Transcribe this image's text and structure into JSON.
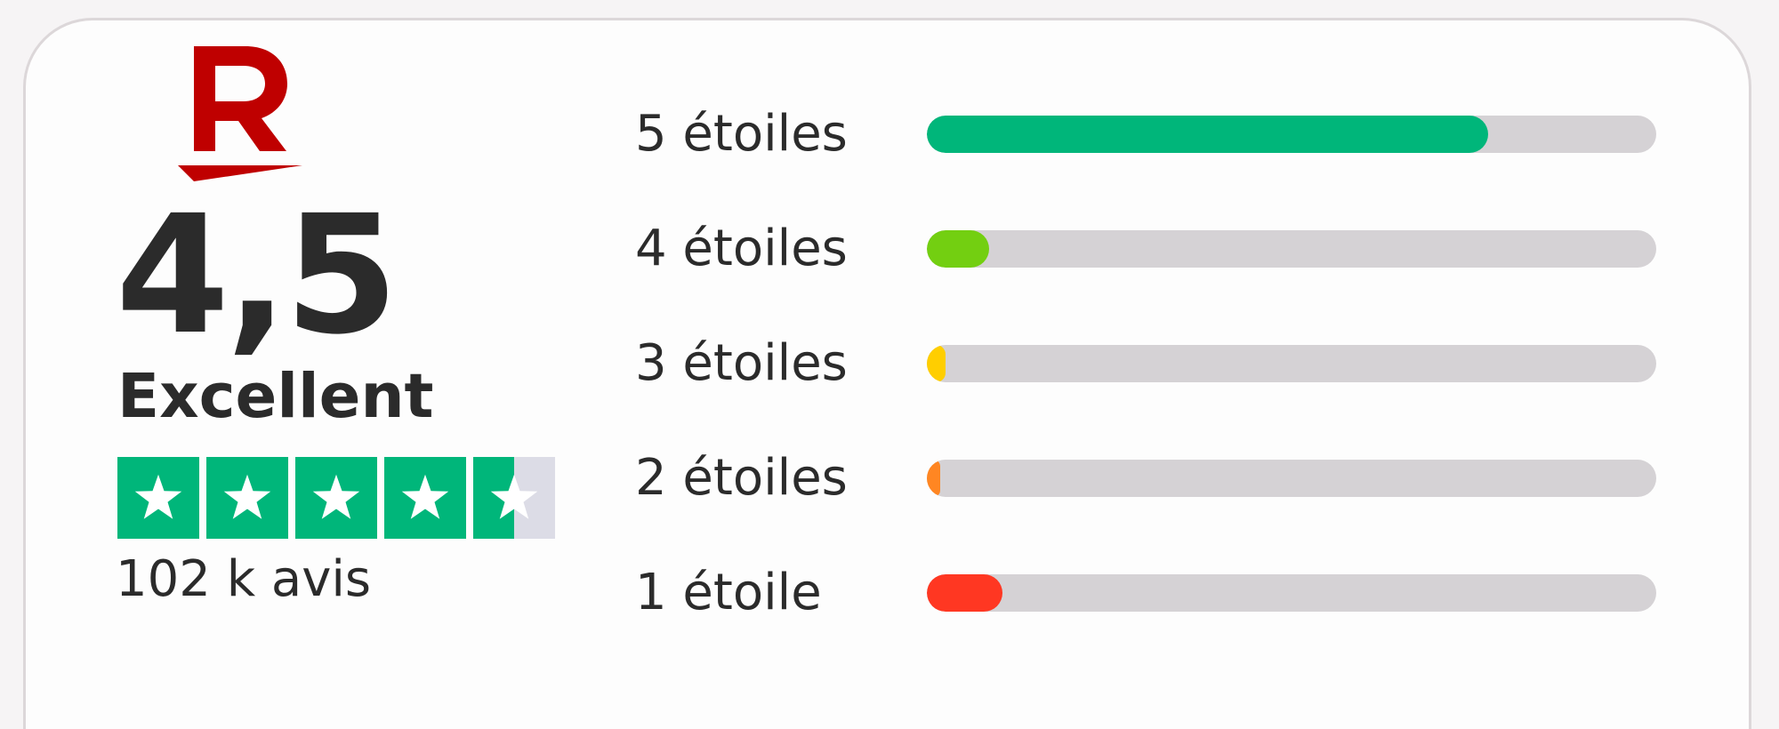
{
  "score": "4,5",
  "rating_label": "Excellent",
  "stars_value": 4.5,
  "stars_max": 5,
  "reviews_count": "102 k avis",
  "distribution": [
    {
      "label": "5 étoiles",
      "fraction": 0.77,
      "color": "#00b67a"
    },
    {
      "label": "4 étoiles",
      "fraction": 0.085,
      "color": "#73cf11"
    },
    {
      "label": "3 étoiles",
      "fraction": 0.025,
      "color": "#ffce00"
    },
    {
      "label": "2 étoiles",
      "fraction": 0.018,
      "color": "#ff8622"
    },
    {
      "label": "1 étoile",
      "fraction": 0.104,
      "color": "#ff3722"
    }
  ],
  "colors": {
    "brand": "#bf0000",
    "star_fill": "#00b67a",
    "star_empty": "#dcdce6",
    "track": "#d5d2d5"
  },
  "icons": {
    "logo": "rakuten-r-logo",
    "star": "star-icon"
  }
}
